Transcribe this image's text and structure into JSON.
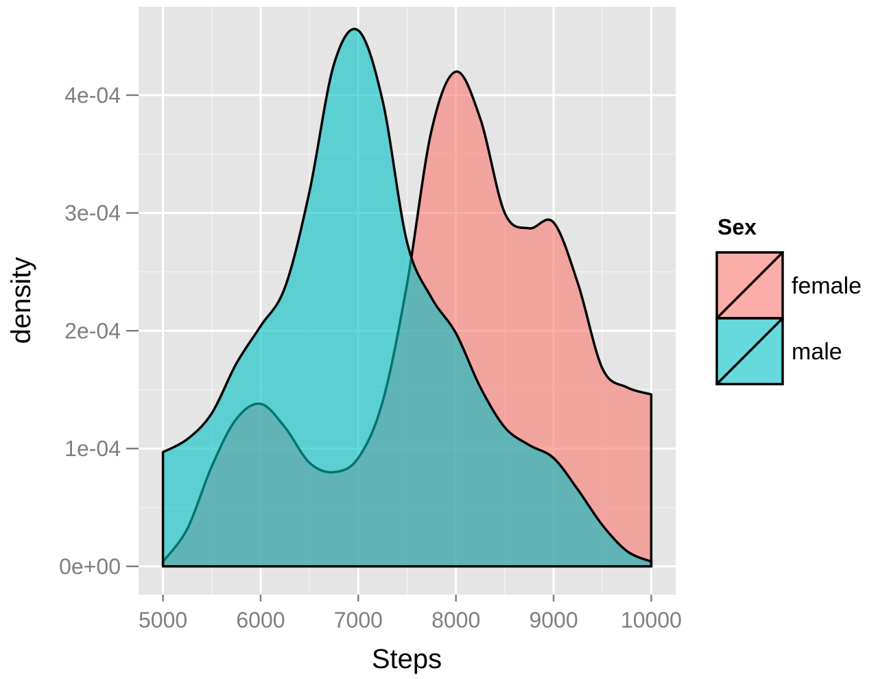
{
  "chart_data": {
    "type": "area",
    "title": "",
    "xlabel": "Steps",
    "ylabel": "density",
    "xlim": [
      4750,
      10250
    ],
    "ylim": [
      -2.4e-05,
      0.000475
    ],
    "x_ticks": [
      5000,
      6000,
      7000,
      8000,
      9000,
      10000
    ],
    "x_tick_labels": [
      "5000",
      "6000",
      "7000",
      "8000",
      "9000",
      "10000"
    ],
    "y_ticks": [
      0,
      0.0001,
      0.0002,
      0.0003,
      0.0004
    ],
    "y_tick_labels": [
      "0e+00",
      "1e-04",
      "2e-04",
      "3e-04",
      "4e-04"
    ],
    "grid": true,
    "legend": {
      "title": "Sex",
      "position": "right"
    },
    "series": [
      {
        "name": "female",
        "color": "#F8766D",
        "x": [
          5000,
          5250,
          5500,
          5750,
          6000,
          6250,
          6500,
          6750,
          7000,
          7250,
          7500,
          7750,
          8000,
          8250,
          8500,
          8750,
          9000,
          9250,
          9500,
          9750,
          10000
        ],
        "y": [
          4e-06,
          3.2e-05,
          8.5e-05,
          0.000125,
          0.000138,
          0.000118,
          8.8e-05,
          8e-05,
          9.2e-05,
          0.00014,
          0.00024,
          0.00037,
          0.00042,
          0.00038,
          0.0003,
          0.000287,
          0.000292,
          0.00024,
          0.000168,
          0.000152,
          0.000146
        ]
      },
      {
        "name": "male",
        "color": "#00BFC4",
        "x": [
          5000,
          5250,
          5500,
          5750,
          6000,
          6250,
          6500,
          6750,
          7000,
          7250,
          7500,
          7750,
          8000,
          8250,
          8500,
          8750,
          9000,
          9250,
          9500,
          9750,
          10000
        ],
        "y": [
          9.7e-05,
          0.000108,
          0.00013,
          0.000172,
          0.000204,
          0.000237,
          0.000318,
          0.000426,
          0.000455,
          0.000395,
          0.000275,
          0.000228,
          0.000198,
          0.000152,
          0.000118,
          0.000103,
          9.2e-05,
          6.5e-05,
          3.5e-05,
          1.3e-05,
          4e-06
        ]
      }
    ]
  }
}
